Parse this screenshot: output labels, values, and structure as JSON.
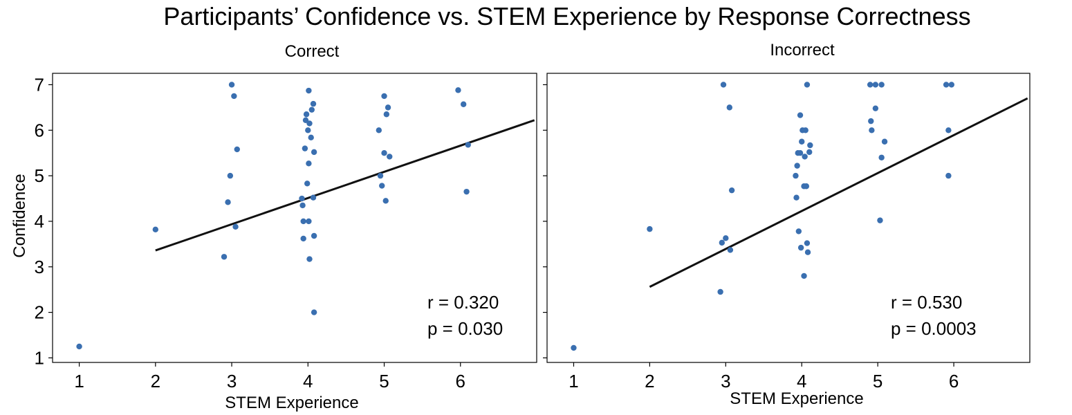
{
  "title": "Participants’ Confidence vs. STEM Experience by Response Correctness",
  "chart_data": [
    {
      "type": "scatter",
      "title": "Correct",
      "xlabel": "STEM Experience",
      "ylabel": "Confidence",
      "xticks": [
        "1",
        "2",
        "3",
        "4",
        "5",
        "6"
      ],
      "yticks": [
        "1",
        "2",
        "3",
        "4",
        "5",
        "6",
        "7"
      ],
      "xlim": [
        0.65,
        7.0
      ],
      "ylim": [
        0.9,
        7.25
      ],
      "points": [
        [
          1.0,
          1.25
        ],
        [
          2.0,
          3.82
        ],
        [
          2.9,
          3.22
        ],
        [
          2.95,
          4.42
        ],
        [
          2.98,
          5.0
        ],
        [
          3.0,
          7.0
        ],
        [
          3.03,
          6.75
        ],
        [
          3.05,
          3.88
        ],
        [
          3.07,
          5.58
        ],
        [
          3.92,
          4.5
        ],
        [
          3.93,
          4.35
        ],
        [
          3.94,
          4.0
        ],
        [
          3.94,
          3.62
        ],
        [
          3.96,
          5.6
        ],
        [
          3.97,
          6.22
        ],
        [
          3.98,
          6.35
        ],
        [
          3.99,
          4.83
        ],
        [
          4.0,
          6.0
        ],
        [
          4.01,
          6.87
        ],
        [
          4.01,
          5.27
        ],
        [
          4.01,
          4.0
        ],
        [
          4.02,
          6.15
        ],
        [
          4.02,
          3.17
        ],
        [
          4.04,
          5.84
        ],
        [
          4.05,
          6.45
        ],
        [
          4.07,
          6.58
        ],
        [
          4.07,
          4.52
        ],
        [
          4.08,
          5.52
        ],
        [
          4.08,
          3.68
        ],
        [
          4.08,
          2.0
        ],
        [
          4.93,
          6.0
        ],
        [
          4.95,
          5.0
        ],
        [
          4.97,
          4.78
        ],
        [
          5.0,
          6.75
        ],
        [
          5.0,
          5.5
        ],
        [
          5.02,
          4.45
        ],
        [
          5.03,
          6.35
        ],
        [
          5.05,
          6.5
        ],
        [
          5.07,
          5.42
        ],
        [
          5.97,
          6.88
        ],
        [
          6.04,
          6.57
        ],
        [
          6.08,
          4.65
        ],
        [
          6.1,
          5.68
        ]
      ],
      "trend": {
        "x": [
          2.0,
          6.97
        ],
        "y": [
          3.36,
          6.22
        ]
      },
      "annotations": {
        "r": "r = 0.320",
        "p": "p = 0.030"
      },
      "colors": {
        "points": "#3a6fb0",
        "trend": "#111111"
      }
    },
    {
      "type": "scatter",
      "title": "Incorrect",
      "xlabel": "STEM Experience",
      "ylabel": "",
      "xticks": [
        "1",
        "2",
        "3",
        "4",
        "5",
        "6"
      ],
      "yticks": [],
      "xlim": [
        0.65,
        7.0
      ],
      "ylim": [
        0.9,
        7.25
      ],
      "points": [
        [
          1.0,
          1.22
        ],
        [
          2.0,
          3.83
        ],
        [
          2.93,
          2.45
        ],
        [
          2.95,
          3.53
        ],
        [
          2.97,
          7.0
        ],
        [
          3.0,
          3.63
        ],
        [
          3.05,
          6.5
        ],
        [
          3.06,
          3.37
        ],
        [
          3.08,
          4.68
        ],
        [
          3.92,
          5.0
        ],
        [
          3.93,
          4.52
        ],
        [
          3.94,
          5.22
        ],
        [
          3.95,
          5.5
        ],
        [
          3.96,
          3.78
        ],
        [
          3.98,
          6.33
        ],
        [
          3.98,
          5.5
        ],
        [
          3.99,
          3.42
        ],
        [
          4.0,
          5.75
        ],
        [
          4.01,
          6.0
        ],
        [
          4.03,
          4.77
        ],
        [
          4.03,
          2.8
        ],
        [
          4.04,
          5.42
        ],
        [
          4.05,
          6.0
        ],
        [
          4.06,
          4.77
        ],
        [
          4.07,
          7.0
        ],
        [
          4.07,
          3.52
        ],
        [
          4.08,
          3.32
        ],
        [
          4.1,
          5.52
        ],
        [
          4.11,
          5.67
        ],
        [
          4.9,
          7.0
        ],
        [
          4.91,
          6.2
        ],
        [
          4.92,
          6.0
        ],
        [
          4.97,
          6.48
        ],
        [
          4.97,
          7.0
        ],
        [
          5.03,
          4.02
        ],
        [
          5.05,
          5.4
        ],
        [
          5.05,
          7.0
        ],
        [
          5.09,
          5.75
        ],
        [
          5.9,
          7.0
        ],
        [
          5.93,
          6.0
        ],
        [
          5.93,
          5.0
        ],
        [
          5.97,
          7.0
        ]
      ],
      "trend": {
        "x": [
          2.0,
          6.97
        ],
        "y": [
          2.56,
          6.7
        ]
      },
      "annotations": {
        "r": "r = 0.530",
        "p": "p = 0.0003"
      },
      "colors": {
        "points": "#3a6fb0",
        "trend": "#111111"
      }
    }
  ]
}
